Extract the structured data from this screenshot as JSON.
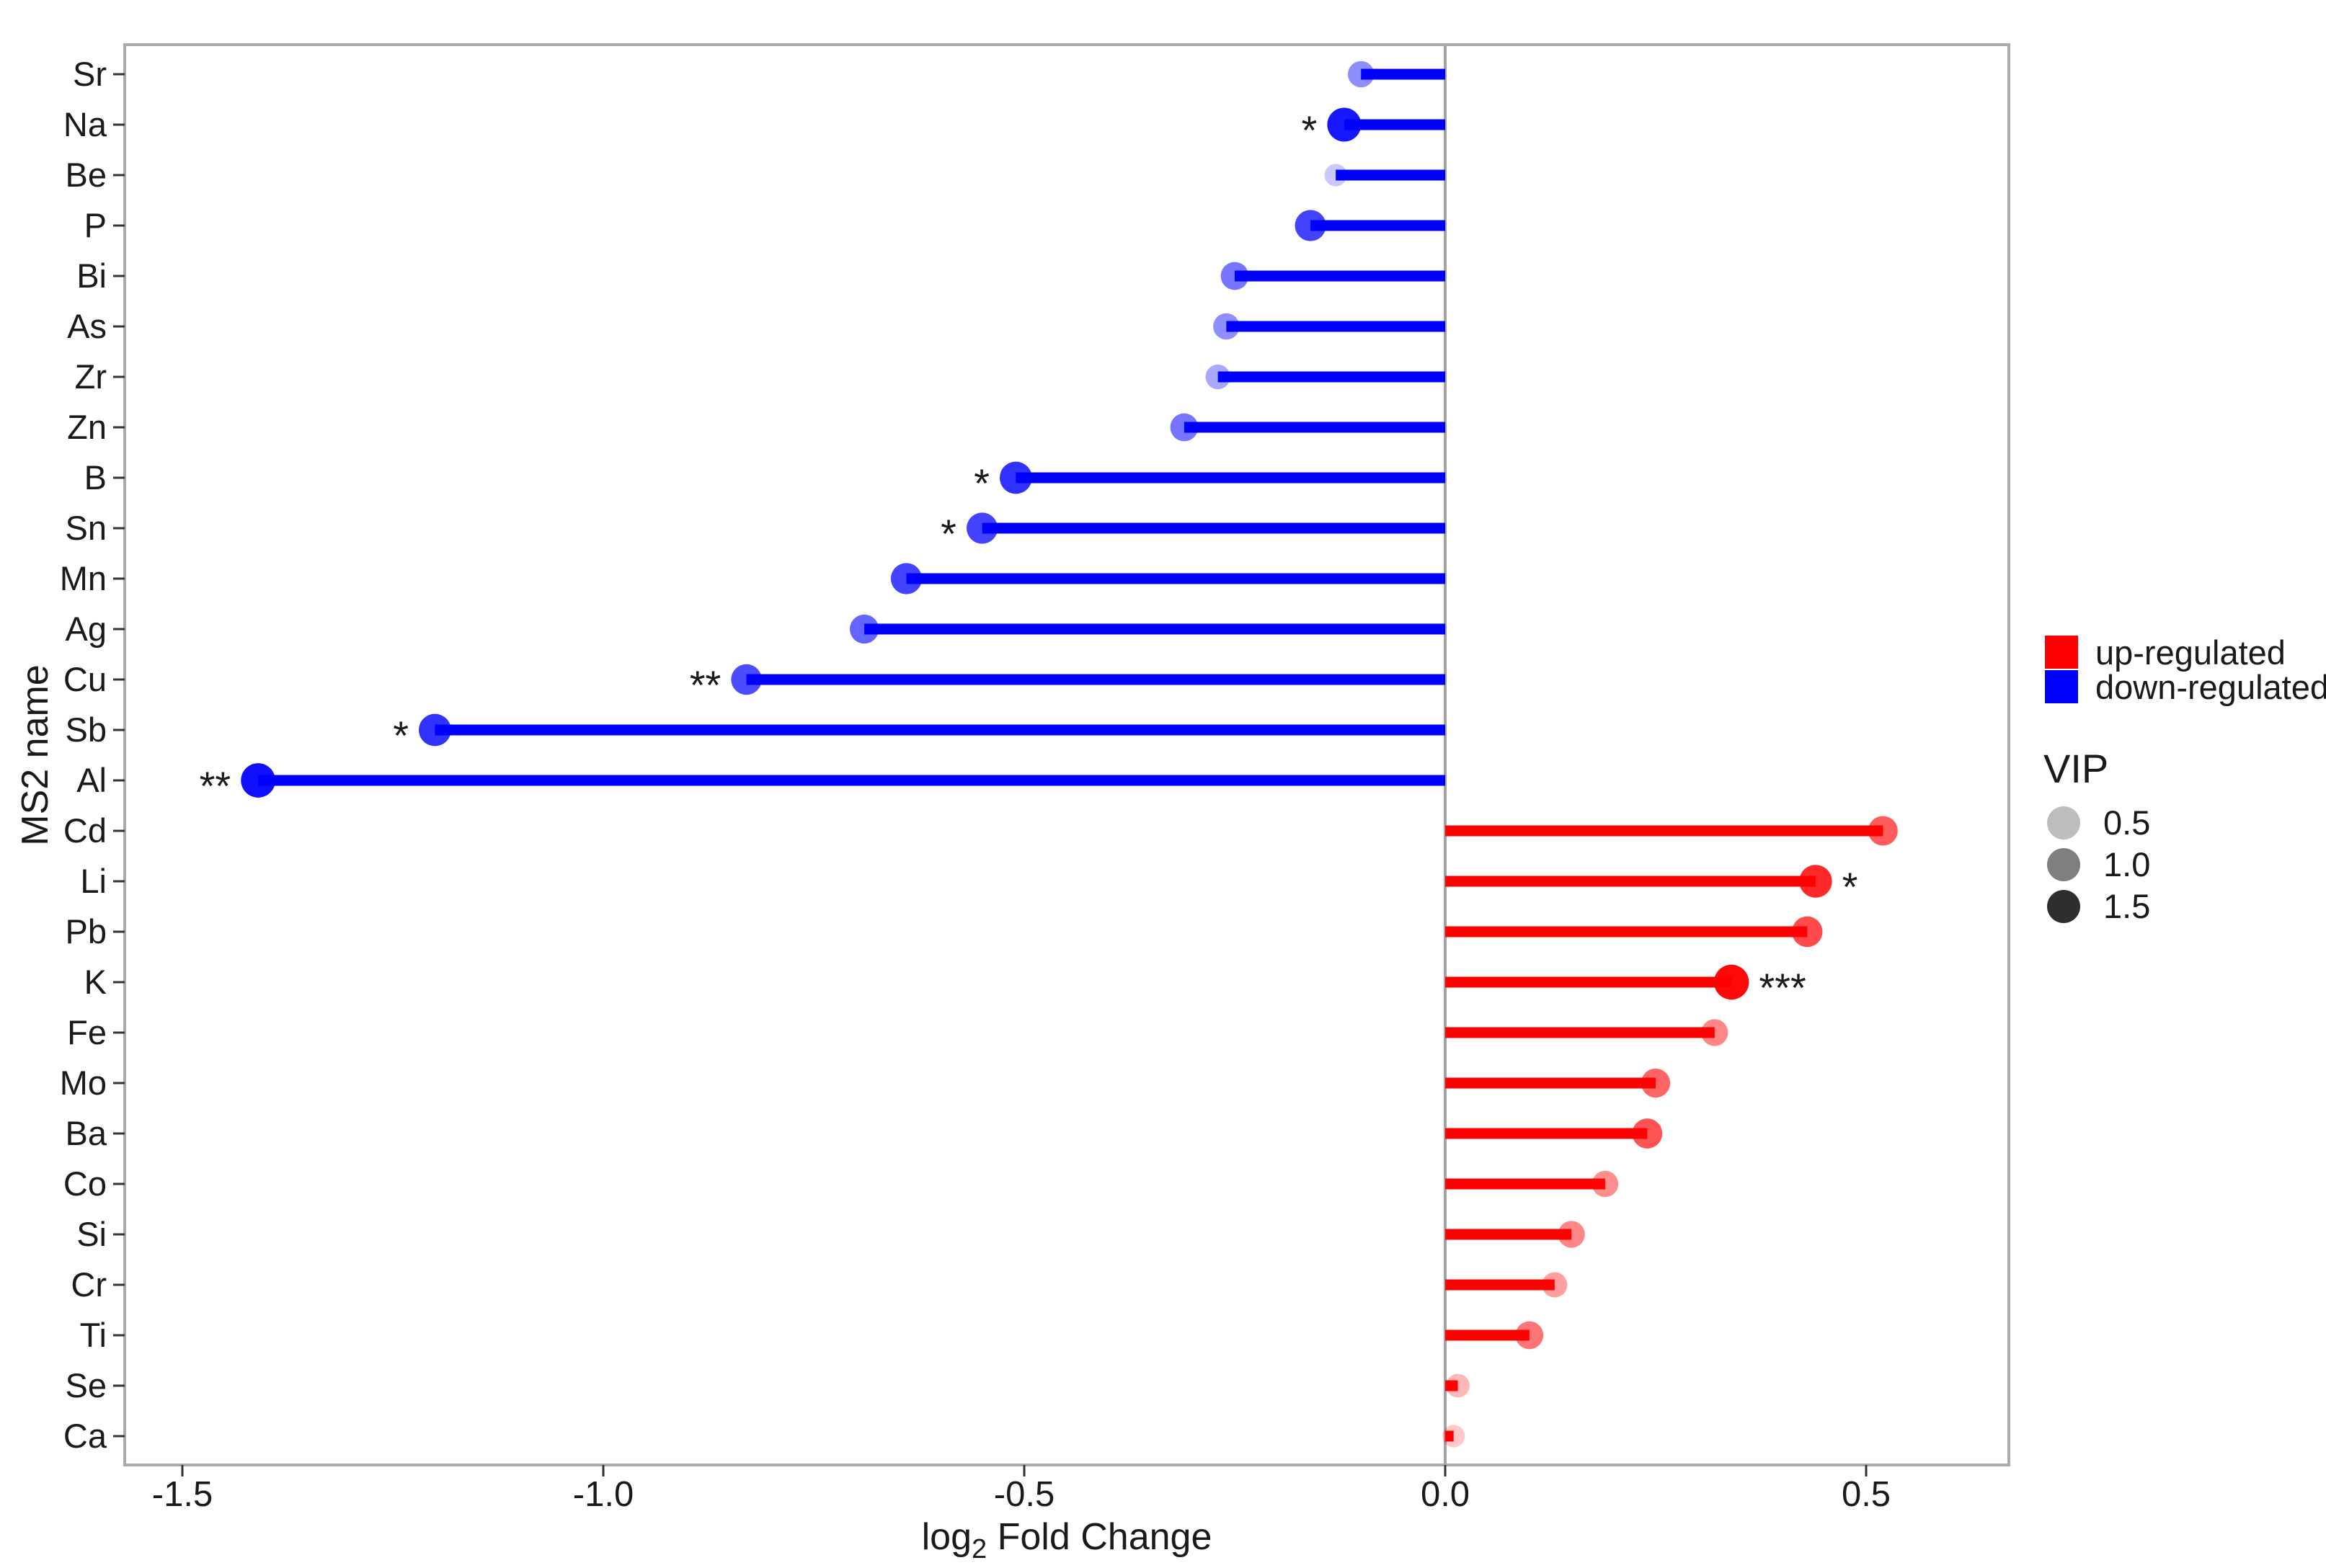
{
  "figure": {
    "background": "#ffffff",
    "panel_border_color": "#ababab",
    "zero_line_color": "#a3a3a3",
    "tick_color": "#333333",
    "text_color": "#1a1a1a"
  },
  "chart_data": {
    "type": "bar",
    "variant": "horizontal-lollipop",
    "title": "",
    "xlabel": "log2 Fold Change",
    "xlabel_parts": {
      "pre": "log",
      "sub": "2",
      "post": " Fold Change"
    },
    "ylabel": "MS2 name",
    "xlim": [
      -1.57,
      0.67
    ],
    "x_ticks": [
      -1.5,
      -1.0,
      -0.5,
      0.0,
      0.5
    ],
    "x_tick_labels": [
      "-1.5",
      "-1.0",
      "-0.5",
      "0.0",
      "0.5"
    ],
    "grid": false,
    "legend_position": "right",
    "colors": {
      "up": "#ff0000",
      "down": "#0000ff"
    },
    "categories": [
      "Sr",
      "Na",
      "Be",
      "P",
      "Bi",
      "As",
      "Zr",
      "Zn",
      "B",
      "Sn",
      "Mn",
      "Ag",
      "Cu",
      "Sb",
      "Al",
      "Cd",
      "Li",
      "Pb",
      "K",
      "Fe",
      "Mo",
      "Ba",
      "Co",
      "Si",
      "Cr",
      "Ti",
      "Se",
      "Ca"
    ],
    "points": [
      {
        "label": "Sr",
        "log2fc": -0.1,
        "vip": 0.7,
        "sig": ""
      },
      {
        "label": "Na",
        "log2fc": -0.12,
        "vip": 1.4,
        "sig": "*"
      },
      {
        "label": "Be",
        "log2fc": -0.13,
        "vip": 0.35,
        "sig": ""
      },
      {
        "label": "P",
        "log2fc": -0.16,
        "vip": 1.15,
        "sig": ""
      },
      {
        "label": "Bi",
        "log2fc": -0.25,
        "vip": 0.85,
        "sig": ""
      },
      {
        "label": "As",
        "log2fc": -0.26,
        "vip": 0.7,
        "sig": ""
      },
      {
        "label": "Zr",
        "log2fc": -0.27,
        "vip": 0.55,
        "sig": ""
      },
      {
        "label": "Zn",
        "log2fc": -0.31,
        "vip": 0.85,
        "sig": ""
      },
      {
        "label": "B",
        "log2fc": -0.51,
        "vip": 1.25,
        "sig": "*"
      },
      {
        "label": "Sn",
        "log2fc": -0.55,
        "vip": 1.15,
        "sig": "*"
      },
      {
        "label": "Mn",
        "log2fc": -0.64,
        "vip": 1.15,
        "sig": ""
      },
      {
        "label": "Ag",
        "log2fc": -0.69,
        "vip": 0.95,
        "sig": ""
      },
      {
        "label": "Cu",
        "log2fc": -0.83,
        "vip": 1.1,
        "sig": "**"
      },
      {
        "label": "Sb",
        "log2fc": -1.2,
        "vip": 1.25,
        "sig": "*"
      },
      {
        "label": "Al",
        "log2fc": -1.41,
        "vip": 1.45,
        "sig": "**"
      },
      {
        "label": "Cd",
        "log2fc": 0.52,
        "vip": 1.0,
        "sig": ""
      },
      {
        "label": "Li",
        "log2fc": 0.44,
        "vip": 1.3,
        "sig": "*"
      },
      {
        "label": "Pb",
        "log2fc": 0.43,
        "vip": 1.1,
        "sig": ""
      },
      {
        "label": "K",
        "log2fc": 0.34,
        "vip": 1.5,
        "sig": "***"
      },
      {
        "label": "Fe",
        "log2fc": 0.32,
        "vip": 0.75,
        "sig": ""
      },
      {
        "label": "Mo",
        "log2fc": 0.25,
        "vip": 0.95,
        "sig": ""
      },
      {
        "label": "Ba",
        "log2fc": 0.24,
        "vip": 1.05,
        "sig": ""
      },
      {
        "label": "Co",
        "log2fc": 0.19,
        "vip": 0.7,
        "sig": ""
      },
      {
        "label": "Si",
        "log2fc": 0.15,
        "vip": 0.75,
        "sig": ""
      },
      {
        "label": "Cr",
        "log2fc": 0.13,
        "vip": 0.6,
        "sig": ""
      },
      {
        "label": "Ti",
        "log2fc": 0.1,
        "vip": 0.85,
        "sig": ""
      },
      {
        "label": "Se",
        "log2fc": 0.015,
        "vip": 0.45,
        "sig": ""
      },
      {
        "label": "Ca",
        "log2fc": 0.01,
        "vip": 0.35,
        "sig": ""
      }
    ],
    "legend": {
      "color_entries": [
        {
          "label": "up-regulated",
          "color": "#ff0000"
        },
        {
          "label": "down-regulated",
          "color": "#0000ff"
        }
      ],
      "vip": {
        "title": "VIP",
        "entries": [
          {
            "label": "0.5",
            "color": "#bdbdbd"
          },
          {
            "label": "1.0",
            "color": "#7f7f7f"
          },
          {
            "label": "1.5",
            "color": "#2e2e2e"
          }
        ]
      }
    }
  }
}
